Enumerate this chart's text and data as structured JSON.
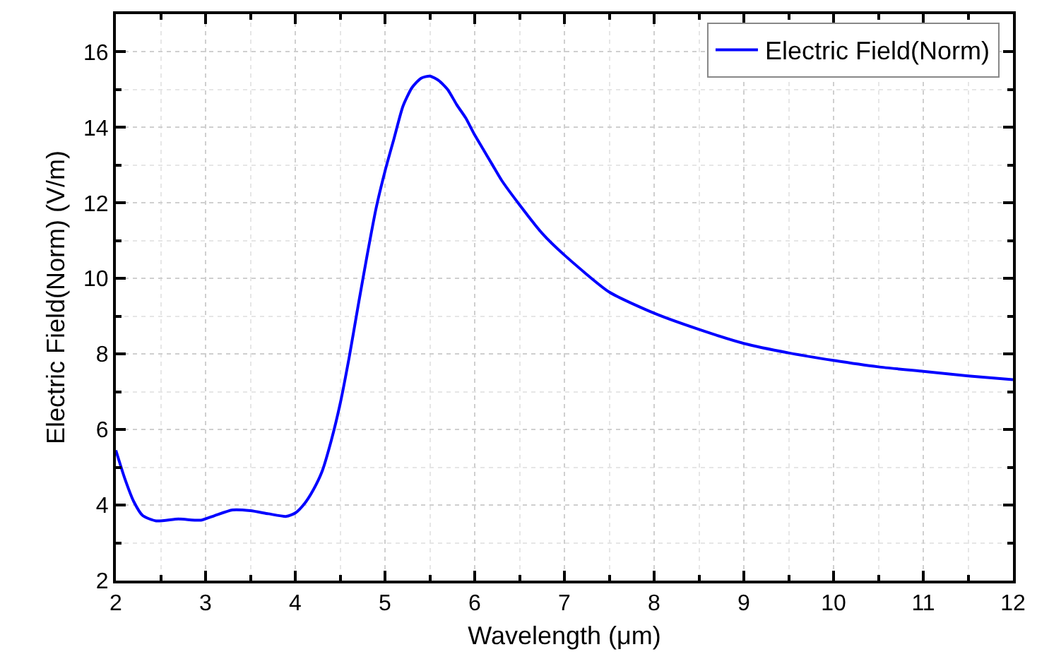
{
  "chart_data": {
    "type": "line",
    "xlabel": "Wavelength (μm)",
    "ylabel": "Electric Field(Norm) (V/m)",
    "x": [
      2,
      2.1,
      2.2,
      2.3,
      2.45,
      2.7,
      2.95,
      3.1,
      3.3,
      3.5,
      3.7,
      3.9,
      4,
      4.1,
      4.2,
      4.3,
      4.4,
      4.5,
      4.6,
      4.7,
      4.8,
      4.9,
      5,
      5.1,
      5.2,
      5.3,
      5.4,
      5.5,
      5.6,
      5.7,
      5.8,
      5.9,
      6,
      6.1,
      6.2,
      6.3,
      6.5,
      6.75,
      7,
      7.5,
      8,
      8.5,
      9,
      9.5,
      10,
      10.5,
      11,
      11.5,
      12
    ],
    "series": [
      {
        "name": "Electric Field(Norm)",
        "color": "#0000ff",
        "values": [
          5.45,
          4.7,
          4.09,
          3.72,
          3.58,
          3.63,
          3.6,
          3.72,
          3.87,
          3.85,
          3.77,
          3.7,
          3.79,
          4.03,
          4.4,
          4.9,
          5.7,
          6.68,
          7.9,
          9.27,
          10.6,
          11.85,
          12.84,
          13.7,
          14.56,
          15.05,
          15.3,
          15.36,
          15.24,
          15,
          14.6,
          14.25,
          13.8,
          13.4,
          13,
          12.6,
          11.95,
          11.2,
          10.62,
          9.64,
          9.08,
          8.65,
          8.28,
          8.03,
          7.83,
          7.66,
          7.54,
          7.42,
          7.32
        ]
      }
    ],
    "xlim": [
      2,
      12
    ],
    "xticks": [
      2,
      3,
      4,
      5,
      6,
      7,
      8,
      9,
      10,
      11,
      12
    ],
    "ylim": [
      2,
      17
    ],
    "yticks": [
      2,
      4,
      6,
      8,
      10,
      12,
      14,
      16
    ],
    "grid": true,
    "legend": "top right",
    "marker": "none",
    "line_style": "solid"
  }
}
